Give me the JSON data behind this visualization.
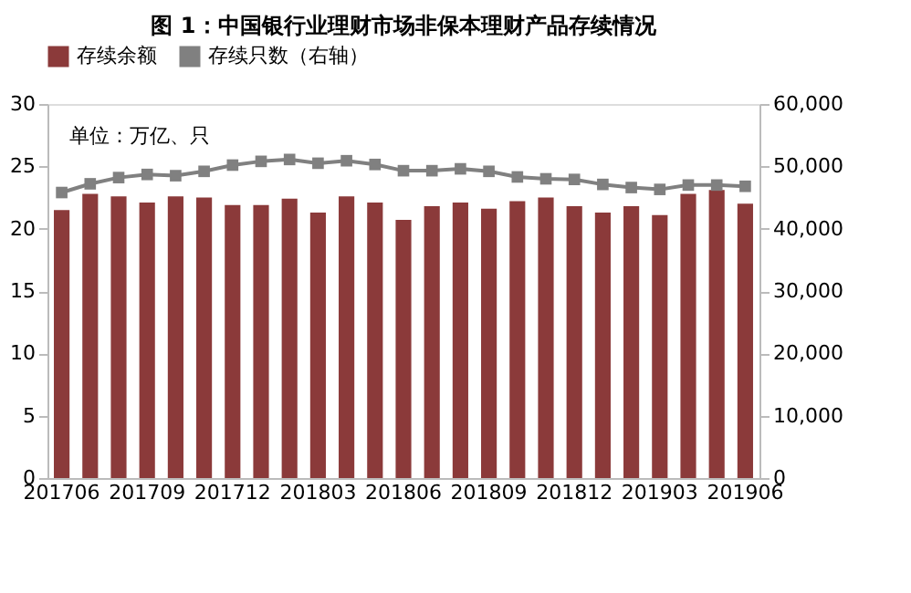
{
  "chart_data": {
    "type": "bar",
    "title": "图 1：中国银行业理财市场非保本理财产品存续情况",
    "categories": [
      "201706",
      null,
      null,
      "201709",
      null,
      null,
      "201712",
      null,
      null,
      "201803",
      null,
      null,
      "201806",
      null,
      null,
      "201809",
      null,
      null,
      "201812",
      null,
      null,
      "201903",
      null,
      null,
      "201906"
    ],
    "series": [
      {
        "name": "存续余额",
        "color": "#8b3a3a",
        "values": [
          21.5,
          22.8,
          22.6,
          22.1,
          22.6,
          22.5,
          21.9,
          21.9,
          22.4,
          21.3,
          22.6,
          22.1,
          20.7,
          21.8,
          22.1,
          21.6,
          22.2,
          22.5,
          21.8,
          21.3,
          21.8,
          21.1,
          22.8,
          23.1,
          22.0
        ]
      },
      {
        "name": "存续只数（右轴）",
        "type": "line",
        "axis": "y2",
        "color": "#808080",
        "marker": "square",
        "values": [
          45800,
          47200,
          48200,
          48700,
          48500,
          49200,
          50200,
          50800,
          51100,
          50500,
          50900,
          50300,
          49300,
          49300,
          49600,
          49200,
          48300,
          48000,
          47900,
          47100,
          46600,
          46300,
          47000,
          47000,
          46800
        ]
      }
    ],
    "ylim": [
      0,
      30
    ],
    "yticks": [
      0,
      5,
      10,
      15,
      20,
      25,
      30
    ],
    "y2lim": [
      0,
      60000
    ],
    "y2ticks": [
      {
        "value": 0,
        "label": "0"
      },
      {
        "value": 10000,
        "label": "10,000"
      },
      {
        "value": 20000,
        "label": "20,000"
      },
      {
        "value": 30000,
        "label": "30,000"
      },
      {
        "value": 40000,
        "label": "40,000"
      },
      {
        "value": 50000,
        "label": "50,000"
      },
      {
        "value": 60000,
        "label": "60,000"
      }
    ],
    "annotations": [
      "单位：万亿、只"
    ],
    "legend": "top",
    "grid": false
  }
}
